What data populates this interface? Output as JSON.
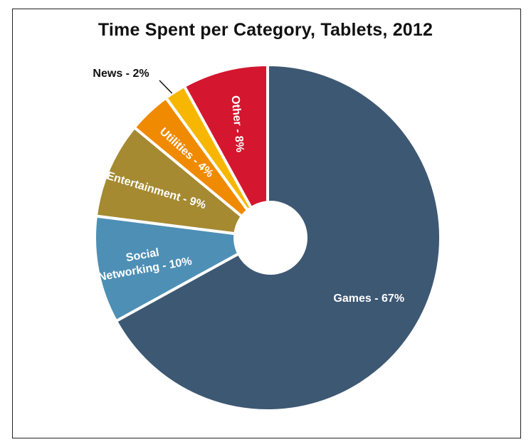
{
  "chart_data": {
    "type": "pie",
    "title": "Time Spent per Category, Tablets, 2012",
    "categories": [
      "Games",
      "Social Networking",
      "Entertainment",
      "Utilities",
      "News",
      "Other"
    ],
    "values": [
      67,
      10,
      9,
      4,
      2,
      8
    ],
    "labels": [
      "Games - 67%",
      "Social Networking - 10%",
      "Entertainment - 9%",
      "Utilities - 4%",
      "News - 2%",
      "Other - 8%"
    ],
    "colors": [
      "#3d5873",
      "#4e8fb5",
      "#a58a32",
      "#f08a00",
      "#f7b700",
      "#d4162f"
    ],
    "donut_hole": true,
    "legend": "none"
  }
}
